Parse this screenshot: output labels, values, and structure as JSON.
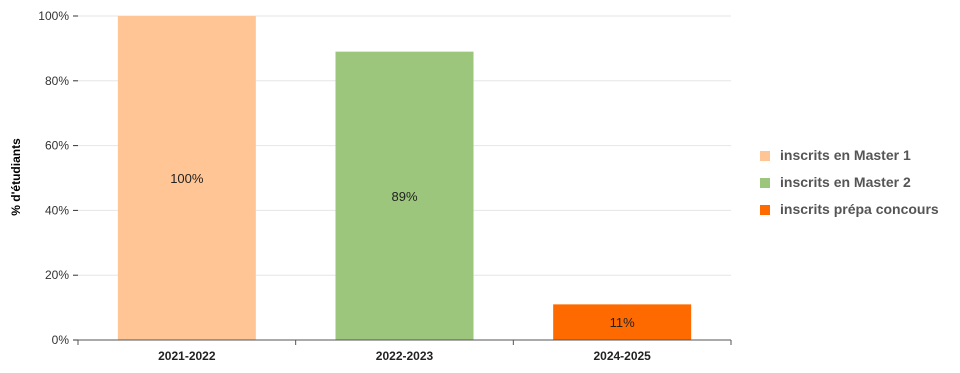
{
  "chart_data": {
    "type": "bar",
    "title": "",
    "xlabel": "",
    "ylabel": "% d'étudiants",
    "ylim": [
      0,
      100
    ],
    "ytick_values": [
      0,
      20,
      40,
      60,
      80,
      100
    ],
    "ytick_labels": [
      "0%",
      "20%",
      "40%",
      "60%",
      "80%",
      "100%"
    ],
    "categories": [
      "2021-2022",
      "2022-2023",
      "2024-2025"
    ],
    "values": [
      100,
      89,
      11
    ],
    "data_labels": [
      "100%",
      "89%",
      "11%"
    ],
    "bar_colors": [
      "#FFC595",
      "#9CC67C",
      "#FF6A00"
    ],
    "grid": true,
    "legend_position": "right",
    "legend": [
      {
        "label": "inscrits en Master 1",
        "color": "#FFC595"
      },
      {
        "label": "inscrits en Master 2",
        "color": "#9CC67C"
      },
      {
        "label": "inscrits prépa concours",
        "color": "#FF6A00"
      }
    ]
  }
}
